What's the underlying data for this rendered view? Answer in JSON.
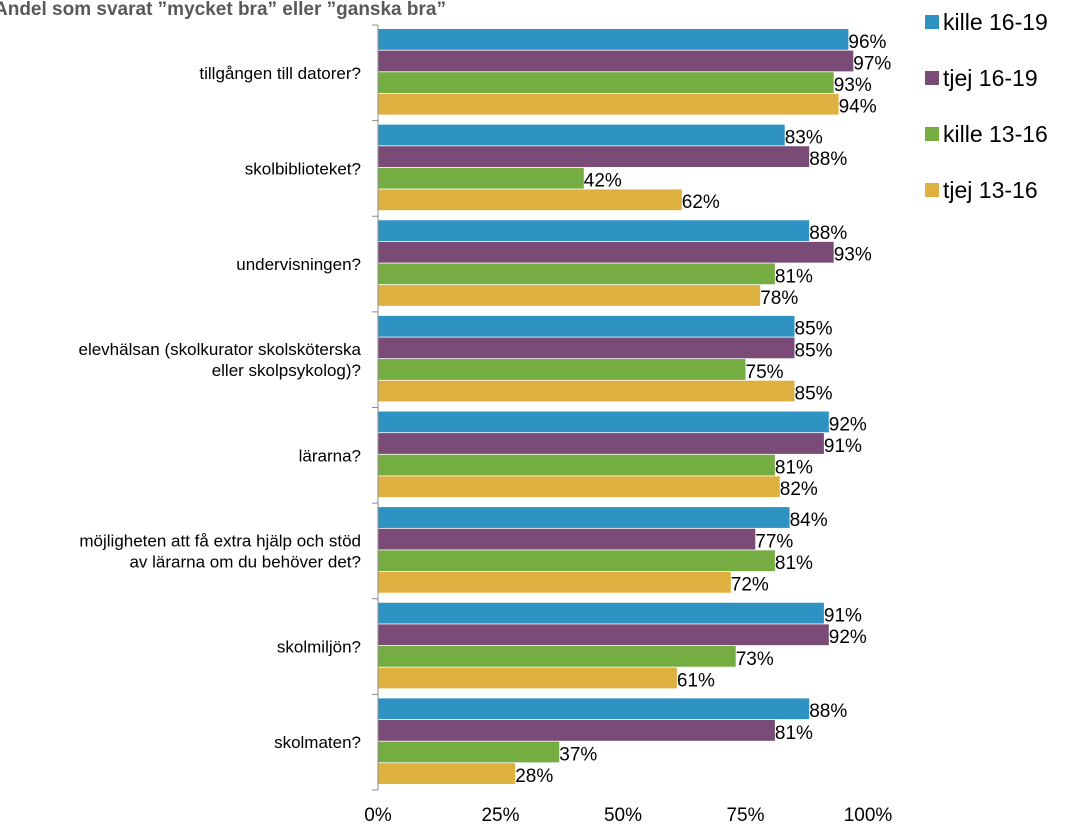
{
  "chart_data": {
    "type": "bar",
    "orientation": "horizontal",
    "title": "Andel som svarat ”mycket bra” eller ”ganska bra”",
    "categories": [
      [
        "tillgången till datorer?"
      ],
      [
        "skolbiblioteket?"
      ],
      [
        "undervisningen?"
      ],
      [
        "elevhälsan (skolkurator skolsköterska",
        "eller skolpsykolog)?"
      ],
      [
        "lärarna?"
      ],
      [
        "möjligheten att få extra hjälp och stöd",
        "av lärarna om du behöver det?"
      ],
      [
        "skolmiljön?"
      ],
      [
        "skolmaten?"
      ]
    ],
    "series": [
      {
        "name": "kille 16-19",
        "color": "#2e93c3",
        "values": [
          96,
          83,
          88,
          85,
          92,
          84,
          91,
          88
        ]
      },
      {
        "name": "tjej 16-19",
        "color": "#7b4b78",
        "values": [
          97,
          88,
          93,
          85,
          91,
          77,
          92,
          81
        ]
      },
      {
        "name": "kille 13-16",
        "color": "#76ad43",
        "values": [
          93,
          42,
          81,
          75,
          81,
          81,
          73,
          37
        ]
      },
      {
        "name": "tjej 13-16",
        "color": "#deb03f",
        "values": [
          94,
          62,
          78,
          85,
          82,
          72,
          61,
          28
        ]
      }
    ],
    "x_ticks": [
      "0%",
      "25%",
      "50%",
      "75%",
      "100%"
    ],
    "xlim": [
      0,
      100
    ],
    "value_suffix": "%",
    "grid": false,
    "legend_position": "top-right"
  }
}
